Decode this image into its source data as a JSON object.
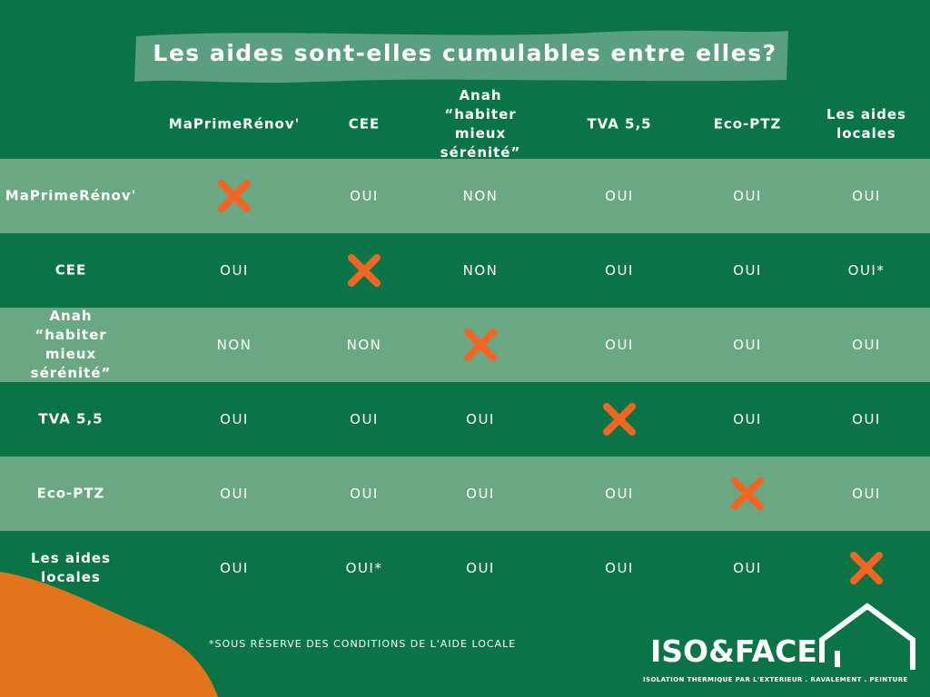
{
  "header": {
    "title": "Les aides sont-elles cumulables entre elles?"
  },
  "table": {
    "columns": [
      "MaPrimeRénov'",
      "CEE",
      "Anah “habiter mieux sérénité”",
      "TVA 5,5",
      "Eco-PTZ",
      "Les aides locales"
    ],
    "rows": [
      {
        "label": "MaPrimeRénov'",
        "cells": [
          null,
          "OUI",
          "NON",
          "OUI",
          "OUI",
          "OUI"
        ]
      },
      {
        "label": "CEE",
        "cells": [
          "OUI",
          null,
          "NON",
          "OUI",
          "OUI",
          "OUI*"
        ]
      },
      {
        "label": "Anah “habiter mieux sérénité”",
        "cells": [
          "NON",
          "NON",
          null,
          "OUI",
          "OUI",
          "OUI"
        ]
      },
      {
        "label": "TVA 5,5",
        "cells": [
          "OUI",
          "OUI",
          "OUI",
          null,
          "OUI",
          "OUI"
        ]
      },
      {
        "label": "Eco-PTZ",
        "cells": [
          "OUI",
          "OUI",
          "OUI",
          "OUI",
          null,
          "OUI"
        ]
      },
      {
        "label": "Les aides locales",
        "cells": [
          "OUI",
          "OUI*",
          "OUI",
          "OUI",
          "OUI",
          null
        ]
      }
    ]
  },
  "footnote": "*SOUS RÉSERVE DES CONDITIONS DE L'AIDE LOCALE",
  "logo": {
    "name": "ISO&FACE",
    "tagline": "ISOLATION THERMIQUE PAR L'EXTERIEUR . RAVALEMENT . PEINTURE"
  }
}
